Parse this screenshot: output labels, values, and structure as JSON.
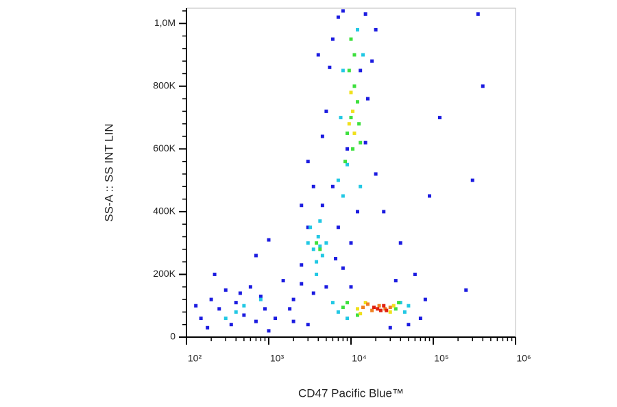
{
  "chart_data": {
    "type": "scatter",
    "x_label": "CD47 Pacific Blue™",
    "y_label": "SS-A :: SS INT LIN",
    "xscale": "log",
    "xlim": [
      100,
      1000000
    ],
    "ylim": [
      0,
      1048576
    ],
    "xticks": [
      {
        "value": 100,
        "label": "10²"
      },
      {
        "value": 1000,
        "label": "10³"
      },
      {
        "value": 10000,
        "label": "10⁴"
      },
      {
        "value": 100000,
        "label": "10⁵"
      },
      {
        "value": 1000000,
        "label": "10⁶"
      }
    ],
    "xminorticks": [
      200,
      300,
      400,
      500,
      600,
      700,
      800,
      900,
      2000,
      3000,
      4000,
      5000,
      6000,
      7000,
      8000,
      9000,
      20000,
      30000,
      40000,
      50000,
      60000,
      70000,
      80000,
      90000,
      200000,
      300000,
      400000,
      500000,
      600000,
      700000,
      800000,
      900000
    ],
    "yticks": [
      0,
      {
        "value": 200000,
        "label": "200K"
      },
      {
        "value": 400000,
        "label": "400K"
      },
      {
        "value": 600000,
        "label": "600K"
      },
      {
        "value": 800000,
        "label": "800K"
      },
      {
        "value": 1000000,
        "label": "1,0M"
      }
    ],
    "yminorticks": [
      40000,
      80000,
      120000,
      160000,
      240000,
      280000,
      320000,
      360000,
      440000,
      480000,
      520000,
      560000,
      640000,
      680000,
      720000,
      760000,
      840000,
      880000,
      920000,
      960000,
      1040000
    ],
    "series": [
      {
        "color": "#1c1ce0",
        "x": [
          150,
          200,
          250,
          300,
          350,
          400,
          500,
          600,
          700,
          800,
          900,
          1200,
          1500,
          2000,
          2500,
          3000,
          2500,
          3500,
          3000,
          4500,
          5000,
          5500,
          6000,
          7000,
          15000,
          20000,
          18000,
          16000,
          15000,
          20000,
          25000,
          40000,
          60000,
          80000,
          70000,
          50000,
          30000,
          3000,
          2000,
          5000,
          8000,
          10000,
          12000,
          180,
          130,
          220,
          450,
          1000,
          1800,
          6000,
          8000,
          4000,
          35000,
          90000,
          120000,
          300000,
          400000,
          350000,
          250000,
          1000,
          700,
          3500,
          2500,
          6500,
          4500,
          7000,
          9000,
          13000,
          10000
        ],
        "y": [
          60000,
          120000,
          90000,
          150000,
          40000,
          110000,
          70000,
          160000,
          50000,
          130000,
          90000,
          60000,
          180000,
          120000,
          230000,
          350000,
          420000,
          480000,
          560000,
          640000,
          720000,
          860000,
          950000,
          1020000,
          1030000,
          980000,
          880000,
          760000,
          620000,
          520000,
          400000,
          300000,
          200000,
          120000,
          60000,
          40000,
          30000,
          40000,
          50000,
          160000,
          220000,
          300000,
          400000,
          30000,
          100000,
          200000,
          140000,
          20000,
          90000,
          480000,
          1040000,
          900000,
          180000,
          450000,
          700000,
          500000,
          800000,
          1030000,
          150000,
          310000,
          260000,
          140000,
          170000,
          250000,
          420000,
          350000,
          600000,
          850000,
          160000
        ]
      },
      {
        "color": "#22c8e4",
        "x": [
          3500,
          4000,
          3200,
          4500,
          3800,
          4200,
          3000,
          5000,
          7000,
          8000,
          9000,
          13000,
          14000,
          8000,
          7500,
          12000,
          6000,
          7000,
          40000,
          45000,
          9000,
          50000,
          500,
          400,
          800,
          300,
          3800,
          4200
        ],
        "y": [
          280000,
          320000,
          350000,
          260000,
          240000,
          370000,
          300000,
          300000,
          500000,
          450000,
          550000,
          480000,
          900000,
          850000,
          700000,
          980000,
          110000,
          80000,
          110000,
          80000,
          60000,
          100000,
          100000,
          80000,
          120000,
          60000,
          200000,
          290000
        ]
      },
      {
        "color": "#3ee03e",
        "x": [
          3800,
          4200,
          9000,
          10000,
          11000,
          12000,
          10500,
          9500,
          11000,
          8500,
          12500,
          10000,
          9000,
          12000,
          35000,
          38000,
          8000,
          13000
        ],
        "y": [
          300000,
          280000,
          650000,
          700000,
          800000,
          750000,
          600000,
          850000,
          900000,
          560000,
          680000,
          950000,
          110000,
          70000,
          90000,
          110000,
          95000,
          620000
        ]
      },
      {
        "color": "#f0e01c",
        "x": [
          10500,
          11000,
          10000,
          9500,
          12000,
          30000,
          15000,
          33000,
          13000
        ],
        "y": [
          720000,
          650000,
          780000,
          680000,
          90000,
          80000,
          110000,
          100000,
          75000
        ]
      },
      {
        "color": "#f08020",
        "x": [
          14000,
          18000,
          22000,
          26000,
          30000,
          16000
        ],
        "y": [
          95000,
          85000,
          100000,
          90000,
          95000,
          105000
        ]
      },
      {
        "color": "#e0200e",
        "x": [
          19000,
          23000,
          25000,
          21000,
          27000
        ],
        "y": [
          95000,
          85000,
          100000,
          90000,
          85000
        ]
      }
    ]
  }
}
